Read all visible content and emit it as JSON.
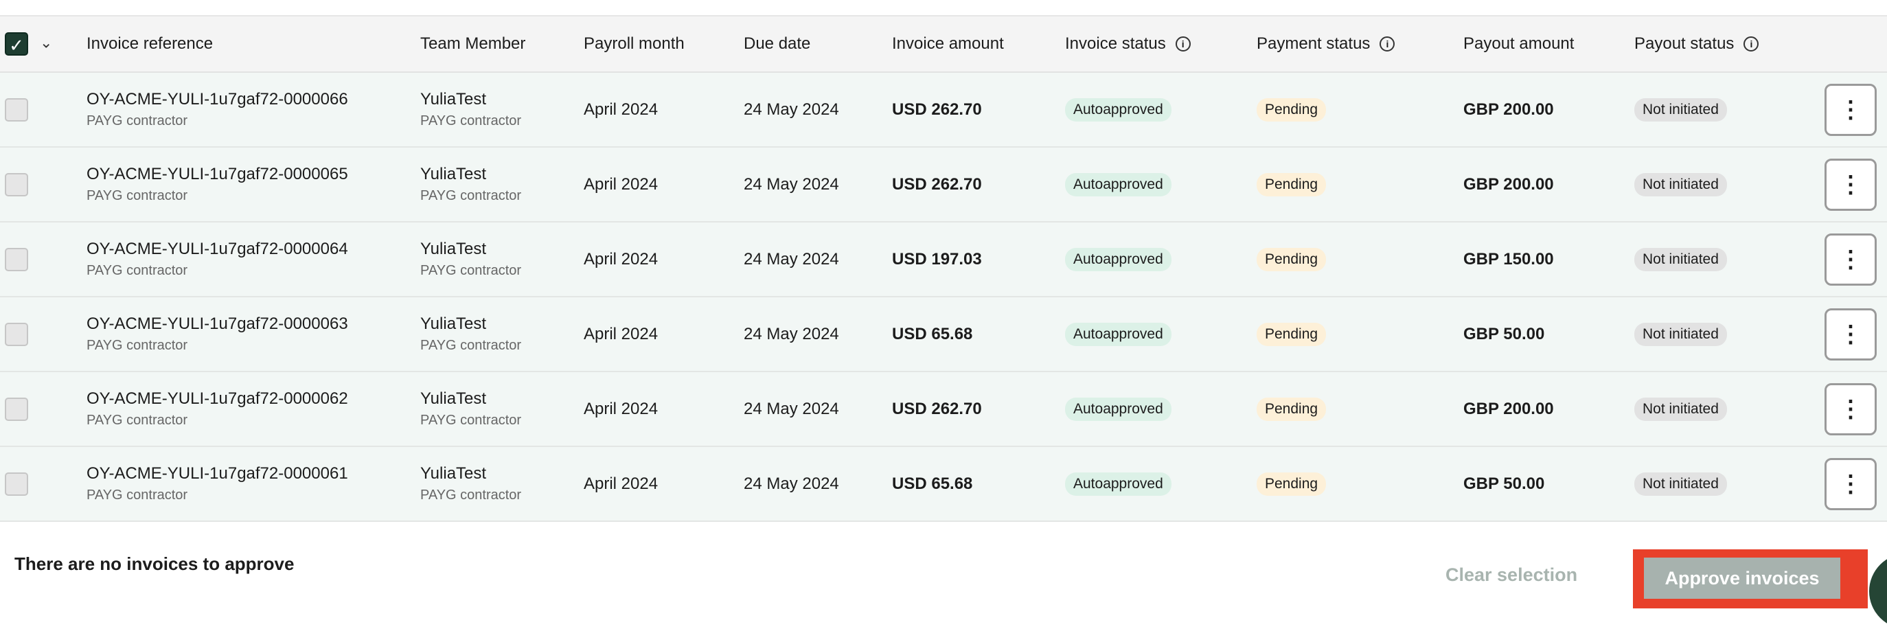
{
  "header": {
    "columns": [
      "Invoice reference",
      "Team Member",
      "Payroll month",
      "Due date",
      "Invoice amount",
      "Invoice status",
      "Payment status",
      "Payout amount",
      "Payout status"
    ],
    "select_all_checked": true
  },
  "rows": [
    {
      "ref": "OY-ACME-YULI-1u7gaf72-0000066",
      "ref_sub": "PAYG contractor",
      "member": "YuliaTest",
      "member_sub": "PAYG contractor",
      "month": "April 2024",
      "due": "24 May 2024",
      "amount": "USD 262.70",
      "inv_status": "Autoapproved",
      "pay_status": "Pending",
      "payout": "GBP 200.00",
      "payout_status": "Not initiated"
    },
    {
      "ref": "OY-ACME-YULI-1u7gaf72-0000065",
      "ref_sub": "PAYG contractor",
      "member": "YuliaTest",
      "member_sub": "PAYG contractor",
      "month": "April 2024",
      "due": "24 May 2024",
      "amount": "USD 262.70",
      "inv_status": "Autoapproved",
      "pay_status": "Pending",
      "payout": "GBP 200.00",
      "payout_status": "Not initiated"
    },
    {
      "ref": "OY-ACME-YULI-1u7gaf72-0000064",
      "ref_sub": "PAYG contractor",
      "member": "YuliaTest",
      "member_sub": "PAYG contractor",
      "month": "April 2024",
      "due": "24 May 2024",
      "amount": "USD 197.03",
      "inv_status": "Autoapproved",
      "pay_status": "Pending",
      "payout": "GBP 150.00",
      "payout_status": "Not initiated"
    },
    {
      "ref": "OY-ACME-YULI-1u7gaf72-0000063",
      "ref_sub": "PAYG contractor",
      "member": "YuliaTest",
      "member_sub": "PAYG contractor",
      "month": "April 2024",
      "due": "24 May 2024",
      "amount": "USD 65.68",
      "inv_status": "Autoapproved",
      "pay_status": "Pending",
      "payout": "GBP 50.00",
      "payout_status": "Not initiated"
    },
    {
      "ref": "OY-ACME-YULI-1u7gaf72-0000062",
      "ref_sub": "PAYG contractor",
      "member": "YuliaTest",
      "member_sub": "PAYG contractor",
      "month": "April 2024",
      "due": "24 May 2024",
      "amount": "USD 262.70",
      "inv_status": "Autoapproved",
      "pay_status": "Pending",
      "payout": "GBP 200.00",
      "payout_status": "Not initiated"
    },
    {
      "ref": "OY-ACME-YULI-1u7gaf72-0000061",
      "ref_sub": "PAYG contractor",
      "member": "YuliaTest",
      "member_sub": "PAYG contractor",
      "month": "April 2024",
      "due": "24 May 2024",
      "amount": "USD 65.68",
      "inv_status": "Autoapproved",
      "pay_status": "Pending",
      "payout": "GBP 50.00",
      "payout_status": "Not initiated"
    }
  ],
  "footer": {
    "message": "There are no invoices to approve",
    "clear_label": "Clear selection",
    "approve_label": "Approve invoices"
  },
  "icons": {
    "info": "info-circle-icon",
    "menu": "more-vertical-icon",
    "check": "check-icon",
    "chevron": "chevron-down-icon"
  },
  "colors": {
    "accent": "#1e3d31",
    "highlight": "#e8402a",
    "autoapproved_bg": "#dcf1e7",
    "pending_bg": "#fdf0d8",
    "not_initiated_bg": "#e2e2e2",
    "approve_disabled": "#a7b2ae"
  }
}
